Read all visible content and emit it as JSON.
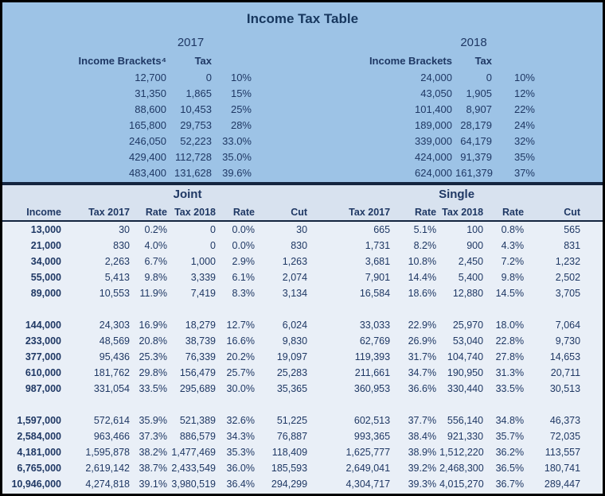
{
  "title": "Income Tax Table",
  "colors": {
    "top_bg": "#9DC3E6",
    "header_band_bg": "#D8E2EF",
    "data_bg": "#E9EFF7",
    "text": "#1F3864",
    "separator": "#14253F",
    "border": "#000000"
  },
  "chart_data": {
    "type": "table",
    "title": "Income Tax Table",
    "bracket_tables": [
      {
        "year": "2017",
        "columns": [
          "Income Brackets⁴",
          "Tax"
        ],
        "rows": [
          [
            "12,700",
            "0",
            "10%"
          ],
          [
            "31,350",
            "1,865",
            "15%"
          ],
          [
            "88,600",
            "10,453",
            "25%"
          ],
          [
            "165,800",
            "29,753",
            "28%"
          ],
          [
            "246,050",
            "52,223",
            "33.0%"
          ],
          [
            "429,400",
            "112,728",
            "35.0%"
          ],
          [
            "483,400",
            "131,628",
            "39.6%"
          ]
        ]
      },
      {
        "year": "2018",
        "columns": [
          "Income Brackets",
          "Tax"
        ],
        "rows": [
          [
            "24,000",
            "0",
            "10%"
          ],
          [
            "43,050",
            "1,905",
            "12%"
          ],
          [
            "101,400",
            "8,907",
            "22%"
          ],
          [
            "189,000",
            "28,179",
            "24%"
          ],
          [
            "339,000",
            "64,179",
            "32%"
          ],
          [
            "424,000",
            "91,379",
            "35%"
          ],
          [
            "624,000",
            "161,379",
            "37%"
          ]
        ]
      }
    ],
    "comparison": {
      "groups": [
        "Joint",
        "Single"
      ],
      "columns": [
        "Income",
        "Tax 2017",
        "Rate",
        "Tax 2018",
        "Rate",
        "Cut",
        "Tax 2017",
        "Rate",
        "Tax 2018",
        "Rate",
        "Cut"
      ],
      "rows": [
        [
          "13,000",
          "30",
          "0.2%",
          "0",
          "0.0%",
          "30",
          "665",
          "5.1%",
          "100",
          "0.8%",
          "565"
        ],
        [
          "21,000",
          "830",
          "4.0%",
          "0",
          "0.0%",
          "830",
          "1,731",
          "8.2%",
          "900",
          "4.3%",
          "831"
        ],
        [
          "34,000",
          "2,263",
          "6.7%",
          "1,000",
          "2.9%",
          "1,263",
          "3,681",
          "10.8%",
          "2,450",
          "7.2%",
          "1,232"
        ],
        [
          "55,000",
          "5,413",
          "9.8%",
          "3,339",
          "6.1%",
          "2,074",
          "7,901",
          "14.4%",
          "5,400",
          "9.8%",
          "2,502"
        ],
        [
          "89,000",
          "10,553",
          "11.9%",
          "7,419",
          "8.3%",
          "3,134",
          "16,584",
          "18.6%",
          "12,880",
          "14.5%",
          "3,705"
        ],
        null,
        [
          "144,000",
          "24,303",
          "16.9%",
          "18,279",
          "12.7%",
          "6,024",
          "33,033",
          "22.9%",
          "25,970",
          "18.0%",
          "7,064"
        ],
        [
          "233,000",
          "48,569",
          "20.8%",
          "38,739",
          "16.6%",
          "9,830",
          "62,769",
          "26.9%",
          "53,040",
          "22.8%",
          "9,730"
        ],
        [
          "377,000",
          "95,436",
          "25.3%",
          "76,339",
          "20.2%",
          "19,097",
          "119,393",
          "31.7%",
          "104,740",
          "27.8%",
          "14,653"
        ],
        [
          "610,000",
          "181,762",
          "29.8%",
          "156,479",
          "25.7%",
          "25,283",
          "211,661",
          "34.7%",
          "190,950",
          "31.3%",
          "20,711"
        ],
        [
          "987,000",
          "331,054",
          "33.5%",
          "295,689",
          "30.0%",
          "35,365",
          "360,953",
          "36.6%",
          "330,440",
          "33.5%",
          "30,513"
        ],
        null,
        [
          "1,597,000",
          "572,614",
          "35.9%",
          "521,389",
          "32.6%",
          "51,225",
          "602,513",
          "37.7%",
          "556,140",
          "34.8%",
          "46,373"
        ],
        [
          "2,584,000",
          "963,466",
          "37.3%",
          "886,579",
          "34.3%",
          "76,887",
          "993,365",
          "38.4%",
          "921,330",
          "35.7%",
          "72,035"
        ],
        [
          "4,181,000",
          "1,595,878",
          "38.2%",
          "1,477,469",
          "35.3%",
          "118,409",
          "1,625,777",
          "38.9%",
          "1,512,220",
          "36.2%",
          "113,557"
        ],
        [
          "6,765,000",
          "2,619,142",
          "38.7%",
          "2,433,549",
          "36.0%",
          "185,593",
          "2,649,041",
          "39.2%",
          "2,468,300",
          "36.5%",
          "180,741"
        ],
        [
          "10,946,000",
          "4,274,818",
          "39.1%",
          "3,980,519",
          "36.4%",
          "294,299",
          "4,304,717",
          "39.3%",
          "4,015,270",
          "36.7%",
          "289,447"
        ]
      ]
    }
  }
}
